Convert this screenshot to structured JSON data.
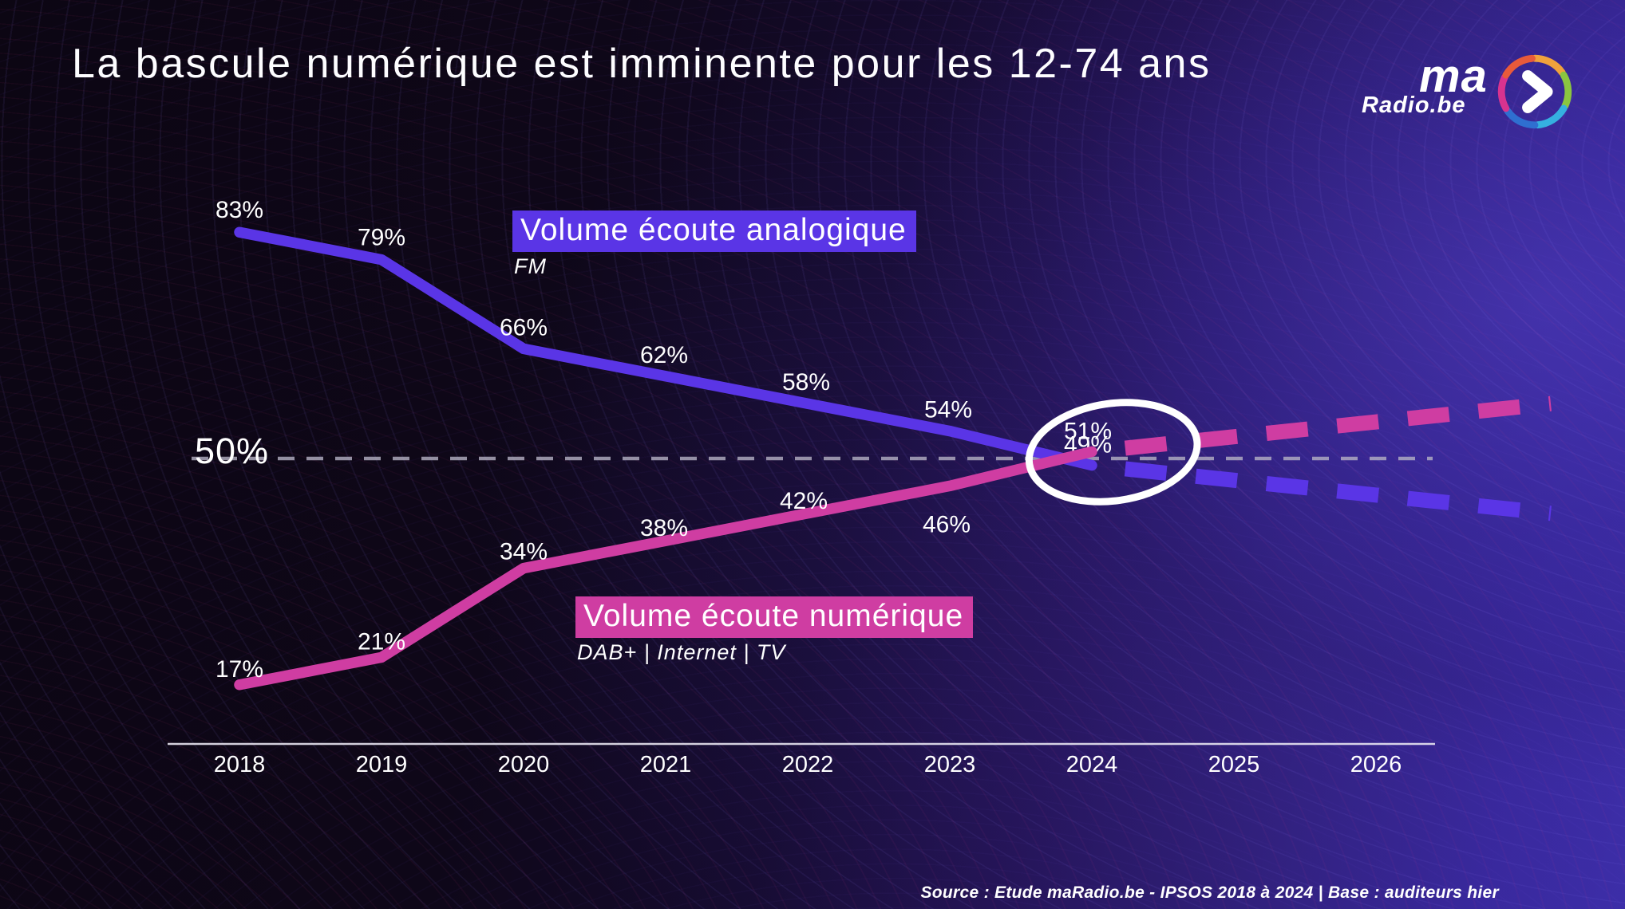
{
  "title": "La bascule numérique est imminente pour les 12-74 ans",
  "logo": {
    "brand": "ma",
    "domain": "Radio.be",
    "arrow_icon": "chevron-right",
    "ring_colors": [
      "#f0a23c",
      "#8bc540",
      "#35b0e0",
      "#2f6fd0",
      "#d8338f",
      "#e85a3a"
    ]
  },
  "source": "Source : Etude maRadio.be - IPSOS 2018 à 2024 | Base : auditeurs hier",
  "chart_data": {
    "type": "line",
    "unit": "%",
    "x": [
      2018,
      2019,
      2020,
      2021,
      2022,
      2023,
      2024
    ],
    "x_axis_years": [
      2018,
      2019,
      2020,
      2021,
      2022,
      2023,
      2024,
      2025,
      2026
    ],
    "series": [
      {
        "name": "Volume écoute analogique",
        "sublabel": "FM",
        "color": "#5a35e6",
        "values": [
          83,
          79,
          66,
          62,
          58,
          54,
          49
        ],
        "projection": {
          "style": "dashed",
          "end_value_estimate": 42
        }
      },
      {
        "name": "Volume écoute numérique",
        "sublabel": "DAB+ | Internet | TV",
        "color": "#cf3da2",
        "values": [
          17,
          21,
          34,
          38,
          42,
          46,
          51
        ],
        "projection": {
          "style": "dashed",
          "end_value_estimate": 58
        }
      }
    ],
    "threshold": {
      "value": 50,
      "label": "50%",
      "style": "dashed",
      "color": "#b5b2c4"
    },
    "annotations": [
      {
        "type": "ellipse",
        "meaning": "crossover-highlight",
        "year": 2024.15,
        "value": 50
      }
    ],
    "ylim": [
      8,
      92
    ],
    "grid": false,
    "legend_position": "inline-labels"
  }
}
